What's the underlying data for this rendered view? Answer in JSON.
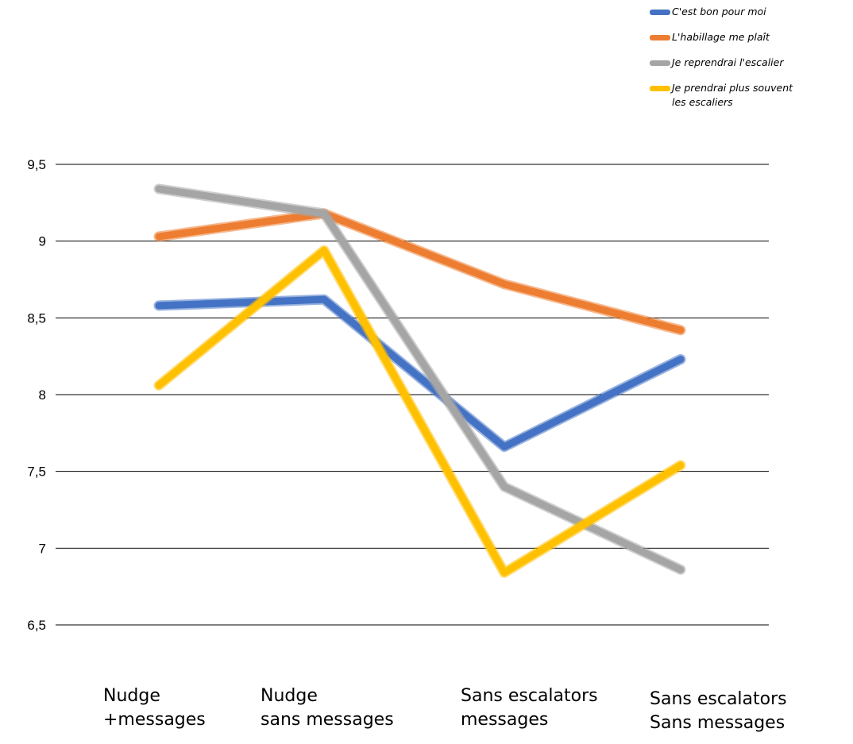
{
  "chart_data": {
    "type": "line",
    "categories": [
      "Nudge\n+messages",
      "Nudge\nsans messages",
      "Sans escalators\nmessages",
      "Sans escalators\nSans messages"
    ],
    "yticks": [
      "9,5",
      "9",
      "8,5",
      "8",
      "7,5",
      "7",
      "6,5"
    ],
    "ylim": [
      6.5,
      9.5
    ],
    "grid": true,
    "legend_position": "top-right",
    "series": [
      {
        "name": "C'est bon pour moi",
        "color": "#4472C4",
        "values": [
          8.58,
          8.62,
          7.66,
          8.23
        ]
      },
      {
        "name": "L'habillage me plaît",
        "color": "#ED7D31",
        "values": [
          9.03,
          9.18,
          8.72,
          8.42
        ]
      },
      {
        "name": "Je reprendrai l'escalier",
        "color": "#A5A5A5",
        "values": [
          9.34,
          9.18,
          7.4,
          6.86
        ]
      },
      {
        "name": "Je prendrai plus souvent\nles escaliers",
        "color": "#FFC000",
        "values": [
          8.06,
          8.94,
          6.84,
          7.54
        ]
      }
    ]
  }
}
